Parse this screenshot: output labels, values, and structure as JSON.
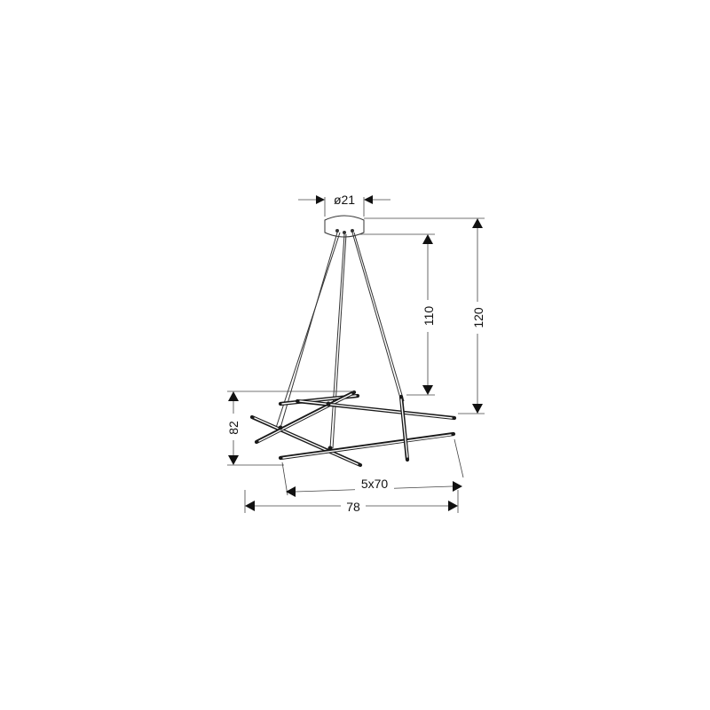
{
  "dimensions": {
    "canopy_diameter": "ø21",
    "drop_to_bars": "110",
    "total_height": "120",
    "bar_cluster_height": "82",
    "bar_spec": "5x70",
    "overall_width": "78"
  },
  "colors": {
    "line": "#1a1a1a",
    "background": "#ffffff"
  }
}
